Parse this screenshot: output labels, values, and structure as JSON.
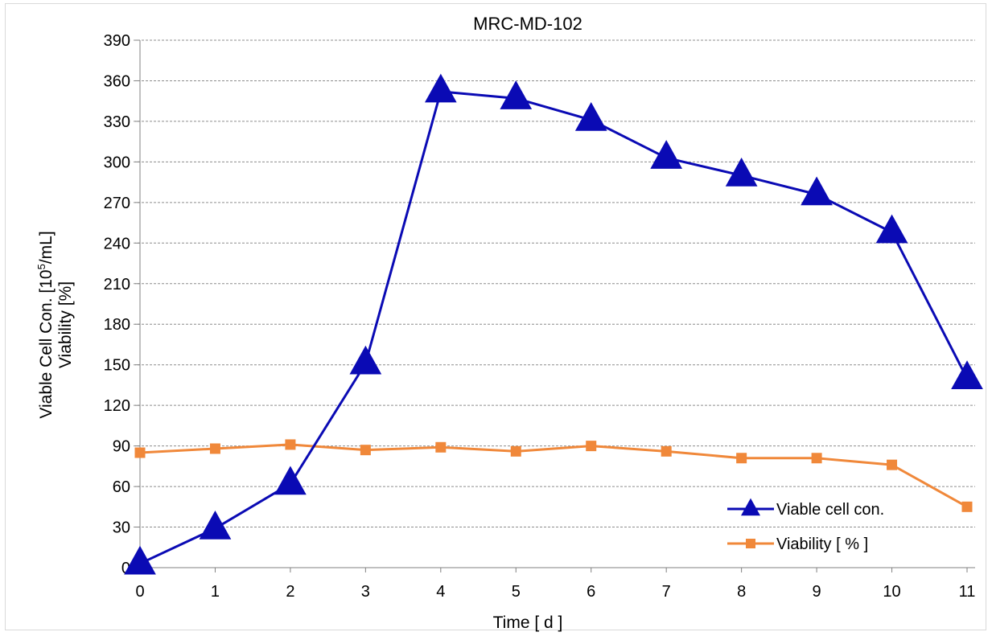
{
  "chart_data": {
    "type": "line",
    "title": "MRC-MD-102",
    "xlabel": "Time   [ d ]",
    "ylabel_line1": "Viable Cell Con.  [10",
    "ylabel_sup": "5",
    "ylabel_line1_end": "/mL]",
    "ylabel_line2": "Viability  [%]",
    "categories": [
      "0",
      "1",
      "2",
      "3",
      "4",
      "5",
      "6",
      "7",
      "8",
      "9",
      "10",
      "11"
    ],
    "x": [
      0,
      1,
      2,
      3,
      4,
      5,
      6,
      7,
      8,
      9,
      10,
      11
    ],
    "ylim": [
      0,
      390
    ],
    "yticks": [
      0,
      30,
      60,
      90,
      120,
      150,
      180,
      210,
      240,
      270,
      300,
      330,
      360,
      390
    ],
    "grid": true,
    "legend_position": "bottom-right",
    "series": [
      {
        "name": "Viable cell con.",
        "color": "#0a0ab4",
        "marker": "triangle",
        "values": [
          3,
          29,
          62,
          151,
          352,
          347,
          331,
          303,
          290,
          276,
          248,
          140
        ]
      },
      {
        "name": "Viability [ % ]",
        "color": "#f0883a",
        "marker": "square",
        "values": [
          85,
          88,
          91,
          87,
          89,
          86,
          90,
          86,
          81,
          81,
          76,
          45
        ]
      }
    ]
  }
}
